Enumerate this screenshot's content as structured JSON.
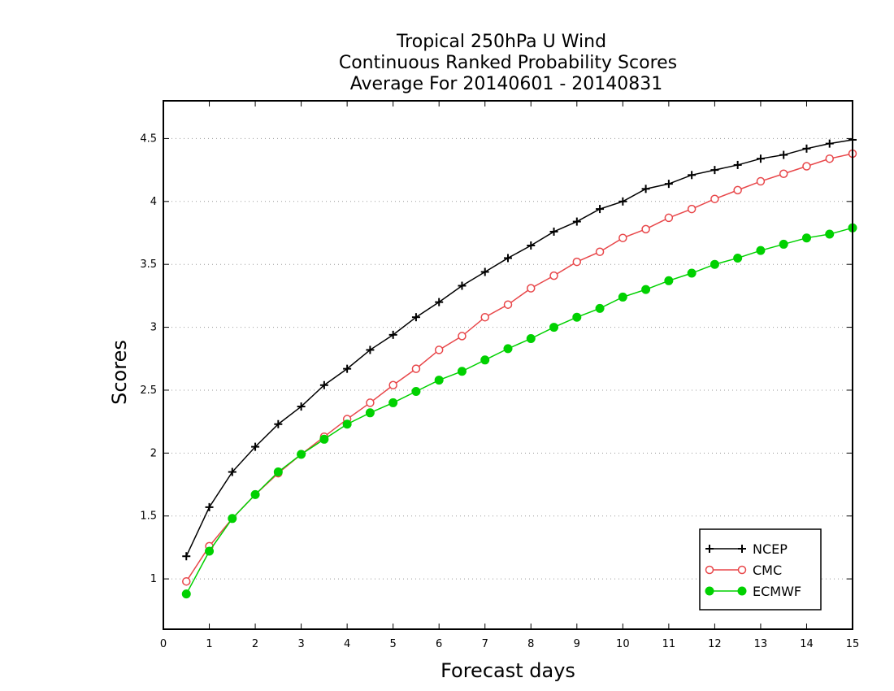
{
  "chart_data": {
    "type": "line",
    "title_lines": [
      "Tropical 250hPa U Wind",
      "Continuous Ranked Probability Scores",
      "Average For 20140601 - 20140831"
    ],
    "xlabel": "Forecast days",
    "ylabel": "Scores",
    "xlim": [
      0,
      15
    ],
    "ylim": [
      0.6,
      4.8
    ],
    "xticks": [
      0,
      1,
      2,
      3,
      4,
      5,
      6,
      7,
      8,
      9,
      10,
      11,
      12,
      13,
      14,
      15
    ],
    "yticks": [
      1,
      1.5,
      2,
      2.5,
      3,
      3.5,
      4,
      4.5
    ],
    "ytick_labels": [
      "1",
      "1.5",
      "2",
      "2.5",
      "3",
      "3.5",
      "4",
      "4.5"
    ],
    "grid": "horizontal-dotted",
    "legend_position": "bottom-right",
    "x": [
      0.5,
      1,
      1.5,
      2,
      2.5,
      3,
      3.5,
      4,
      4.5,
      5,
      5.5,
      6,
      6.5,
      7,
      7.5,
      8,
      8.5,
      9,
      9.5,
      10,
      10.5,
      11,
      11.5,
      12,
      12.5,
      13,
      13.5,
      14,
      14.5,
      15
    ],
    "series": [
      {
        "name": "NCEP",
        "color": "#000000",
        "marker": "plus",
        "values": [
          1.18,
          1.57,
          1.85,
          2.05,
          2.23,
          2.37,
          2.54,
          2.67,
          2.82,
          2.94,
          3.08,
          3.2,
          3.33,
          3.44,
          3.55,
          3.65,
          3.76,
          3.84,
          3.94,
          4.0,
          4.1,
          4.14,
          4.21,
          4.25,
          4.29,
          4.34,
          4.37,
          4.42,
          4.46,
          4.49
        ]
      },
      {
        "name": "CMC",
        "color": "#e8474a",
        "marker": "open-circle",
        "values": [
          0.98,
          1.26,
          1.48,
          1.67,
          1.84,
          1.99,
          2.13,
          2.27,
          2.4,
          2.54,
          2.67,
          2.82,
          2.93,
          3.08,
          3.18,
          3.31,
          3.41,
          3.52,
          3.6,
          3.71,
          3.78,
          3.87,
          3.94,
          4.02,
          4.09,
          4.16,
          4.22,
          4.28,
          4.34,
          4.38
        ]
      },
      {
        "name": "ECMWF",
        "color": "#00d100",
        "marker": "filled-circle",
        "values": [
          0.88,
          1.22,
          1.48,
          1.67,
          1.85,
          1.99,
          2.11,
          2.23,
          2.32,
          2.4,
          2.49,
          2.58,
          2.65,
          2.74,
          2.83,
          2.91,
          3.0,
          3.08,
          3.15,
          3.24,
          3.3,
          3.37,
          3.43,
          3.5,
          3.55,
          3.61,
          3.66,
          3.71,
          3.74,
          3.79
        ]
      }
    ]
  }
}
